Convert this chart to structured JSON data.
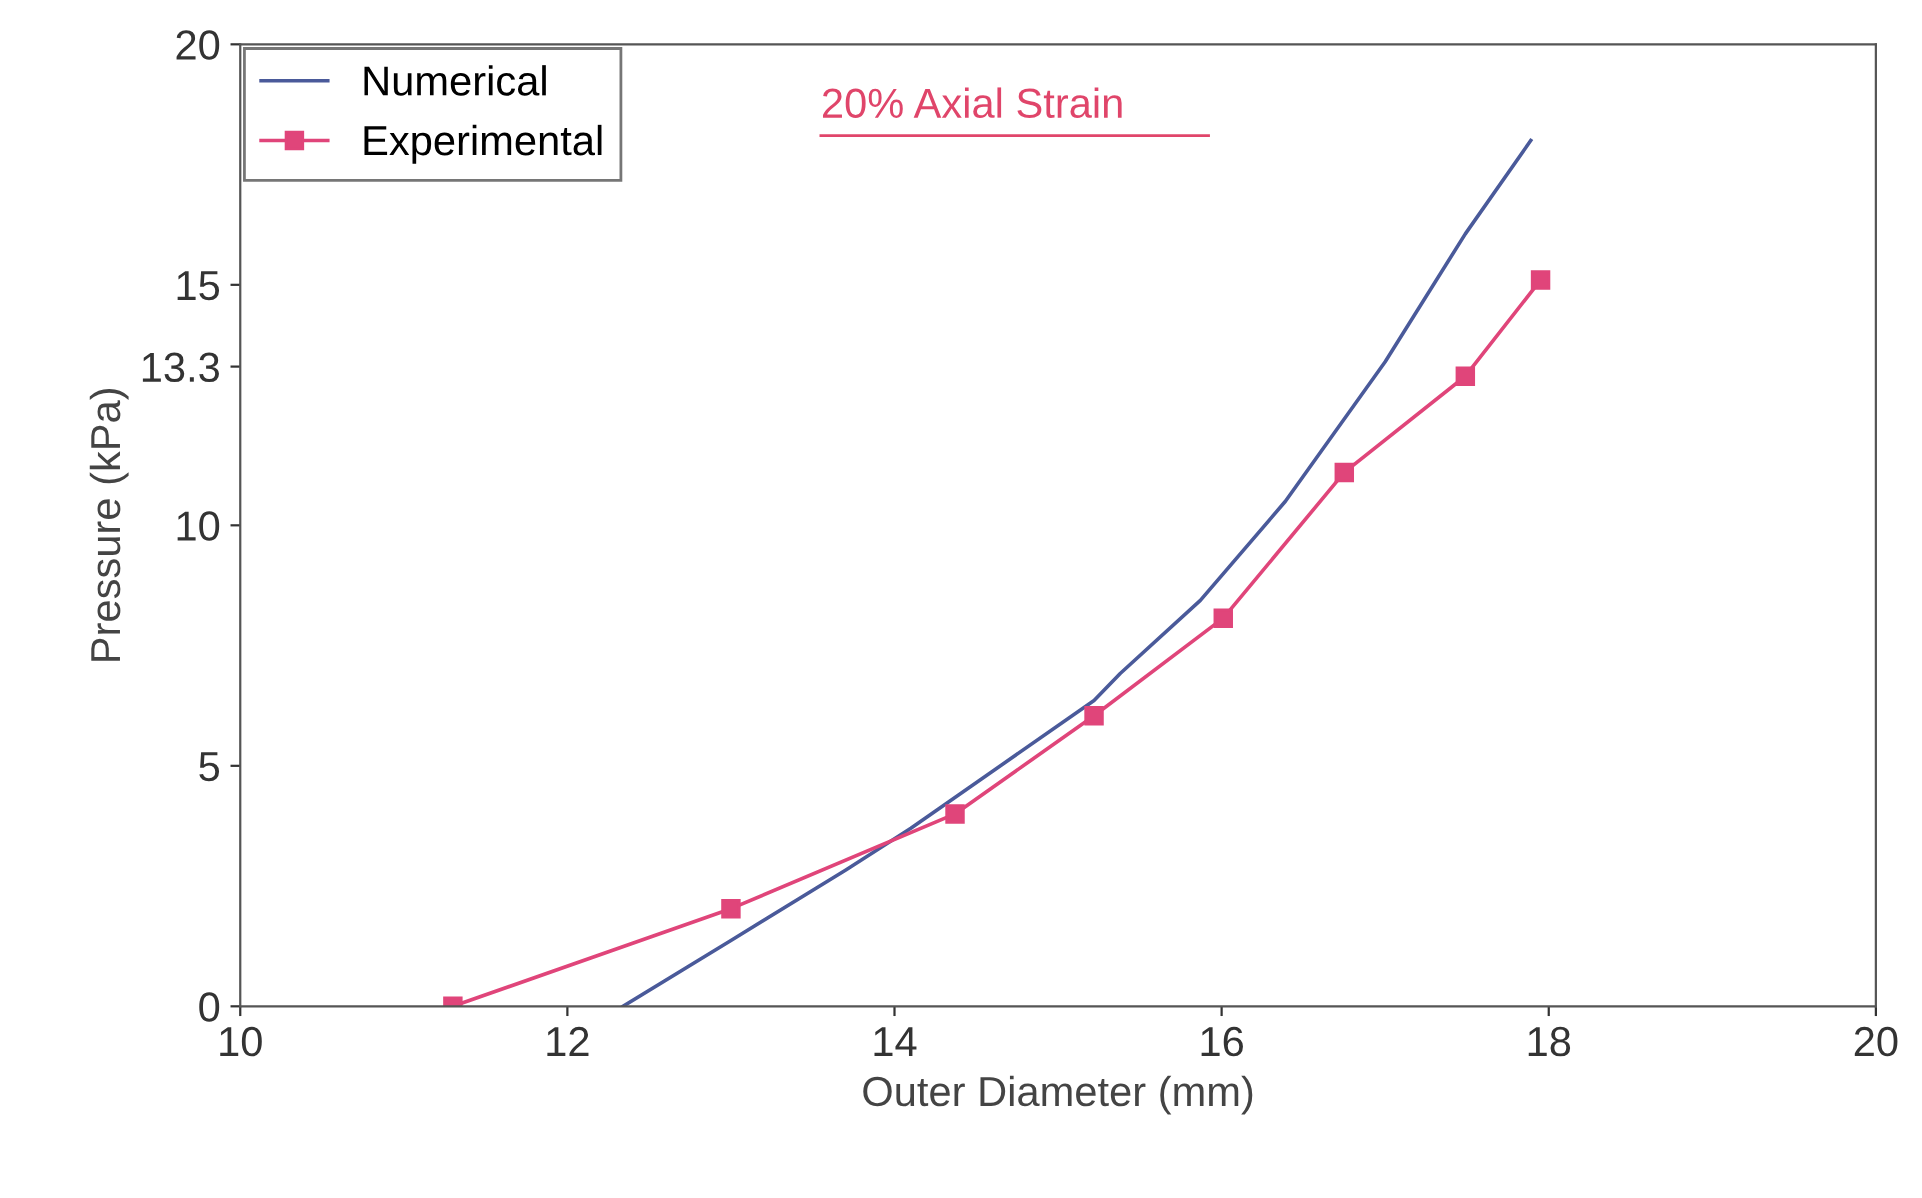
{
  "chart_data": {
    "type": "line",
    "xlabel": "Outer Diameter (mm)",
    "ylabel": "Pressure (kPa)",
    "xlim": [
      10,
      20
    ],
    "xticks": [
      10,
      12,
      14,
      16,
      18,
      20
    ],
    "ylim": [
      0,
      20
    ],
    "yticks": [
      0,
      5,
      10,
      13.3,
      15,
      20
    ],
    "grid": false,
    "legend": "top left",
    "annotations": [
      "20% Axial Strain"
    ],
    "series": [
      {
        "name": "Numerical",
        "color": "#4a5a9a",
        "marker": "none",
        "x": [
          12.34,
          13.0,
          13.7,
          14.1,
          15.22,
          15.38,
          15.87,
          16.39,
          17.0,
          17.49,
          17.89
        ],
        "values": [
          0,
          1.37,
          2.83,
          3.7,
          6.36,
          6.92,
          8.44,
          10.5,
          13.4,
          16.06,
          18.0
        ]
      },
      {
        "name": "Experimental",
        "color": "#e0457a",
        "marker": "square",
        "x": [
          11.3,
          13.0,
          14.37,
          15.22,
          16.01,
          16.75,
          17.49,
          17.95
        ],
        "values": [
          0,
          2.03,
          4.0,
          6.04,
          8.07,
          11.1,
          13.1,
          15.1
        ]
      }
    ]
  }
}
